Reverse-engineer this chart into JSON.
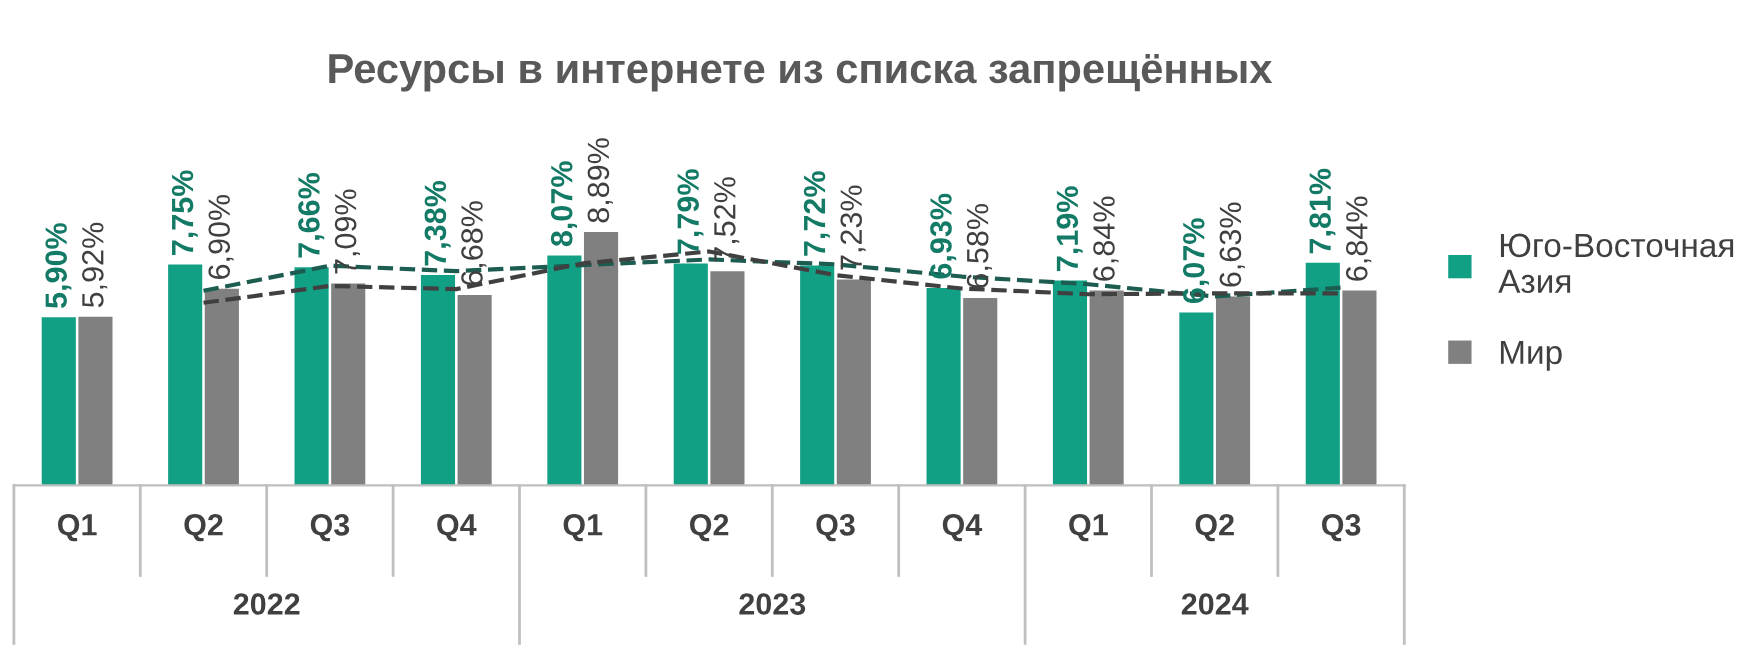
{
  "chart_data": {
    "type": "bar",
    "title": "Ресурсы в интернете из списка запрещённых",
    "categories": [
      "Q1",
      "Q2",
      "Q3",
      "Q4",
      "Q1",
      "Q2",
      "Q3",
      "Q4",
      "Q1",
      "Q2",
      "Q3"
    ],
    "annotations": [
      "2022",
      "2023",
      "2024"
    ],
    "series": [
      {
        "name": "Юго-Восточная Азия",
        "color": "#12a085",
        "values": [
          5.9,
          7.75,
          7.66,
          7.38,
          8.07,
          7.79,
          7.72,
          6.93,
          7.19,
          6.07,
          7.81
        ],
        "value_labels": [
          "5,90%",
          "7,75%",
          "7,66%",
          "7,38%",
          "8,07%",
          "7,79%",
          "7,72%",
          "6,93%",
          "7,19%",
          "6,07%",
          "7,81%"
        ]
      },
      {
        "name": "Мир",
        "color": "#808080",
        "values": [
          5.92,
          6.9,
          7.09,
          6.68,
          8.89,
          7.52,
          7.23,
          6.58,
          6.84,
          6.63,
          6.84
        ],
        "value_labels": [
          "5,92%",
          "6,90%",
          "7,09%",
          "6,68%",
          "8,89%",
          "7,52%",
          "7,23%",
          "6,58%",
          "6,84%",
          "6,63%",
          "6,84%"
        ]
      },
      {
        "type": "line",
        "line_style": "dashed",
        "color": "#1d5c50",
        "values": [
          null,
          6.83,
          7.71,
          7.52,
          7.73,
          7.93,
          7.76,
          7.33,
          7.06,
          6.63,
          6.94
        ]
      },
      {
        "type": "line",
        "line_style": "dashed",
        "color": "#404040",
        "values": [
          null,
          6.41,
          7.0,
          6.89,
          7.79,
          8.21,
          7.38,
          6.91,
          6.71,
          6.74,
          6.74
        ]
      }
    ],
    "legend": "right",
    "grid": false,
    "tick_labels": "x"
  }
}
